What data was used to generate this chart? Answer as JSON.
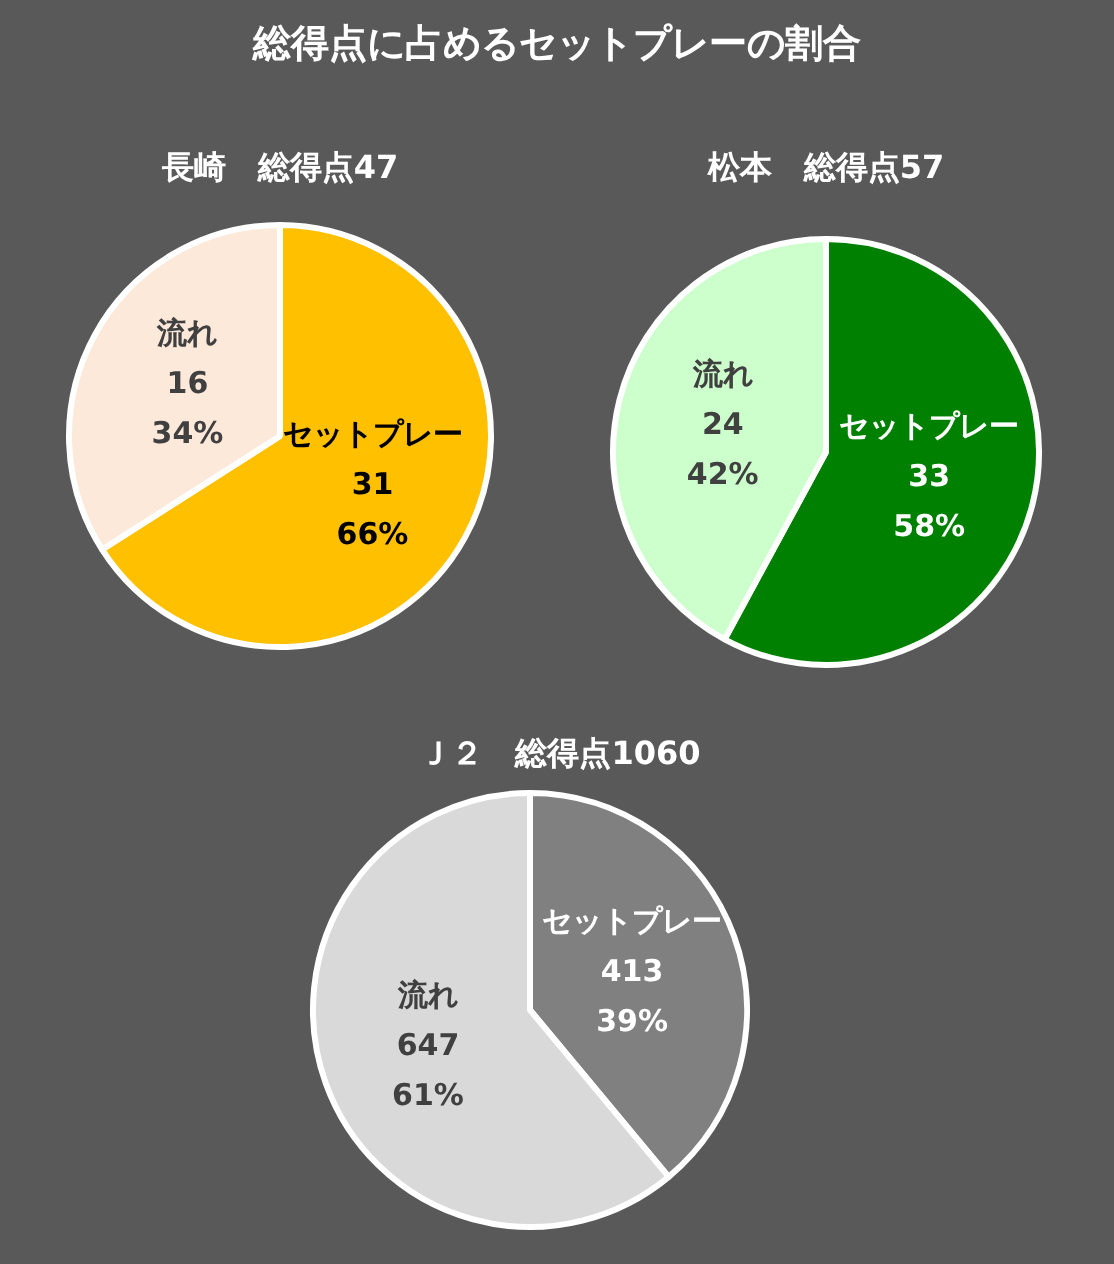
{
  "chart_data": [
    {
      "type": "pie",
      "title": "総得点に占めるセットプレーの割合",
      "subtitle": "長崎　総得点47",
      "categories": [
        "セットプレー",
        "流れ"
      ],
      "values": [
        31,
        16
      ],
      "colors": [
        "#ffc000",
        "#fde9d9"
      ],
      "value_labels": [
        "31\n66%",
        "16\n34%"
      ]
    },
    {
      "type": "pie",
      "subtitle": "松本　総得点57",
      "categories": [
        "セットプレー",
        "流れ"
      ],
      "values": [
        33,
        24
      ],
      "colors": [
        "#008000",
        "#ccffcc"
      ],
      "value_labels": [
        "33\n58%",
        "24\n42%"
      ]
    },
    {
      "type": "pie",
      "subtitle": "Ｊ２　総得点1060",
      "categories": [
        "セットプレー",
        "流れ"
      ],
      "values": [
        413,
        647
      ],
      "colors": [
        "#808080",
        "#d9d9d9"
      ],
      "value_labels": [
        "413\n39%",
        "647\n61%"
      ]
    }
  ]
}
